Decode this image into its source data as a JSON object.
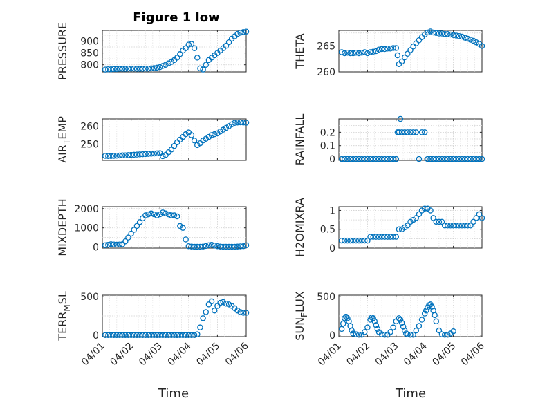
{
  "figure_title": "Figure 1 low",
  "xlabel": "Time",
  "x_ticks": [
    "04/01",
    "04/02",
    "04/03",
    "04/04",
    "04/05",
    "04/06"
  ],
  "marker_color": "#0072bd",
  "chart_data": [
    {
      "type": "scatter",
      "ylabel": "PRESSURE",
      "ylabel_sub": "",
      "ylim": [
        770,
        945
      ],
      "yticks": [
        800,
        850,
        900
      ],
      "xlim": [
        0,
        5
      ],
      "x": [
        0.1,
        0.2,
        0.3,
        0.4,
        0.5,
        0.6,
        0.7,
        0.8,
        0.9,
        1.0,
        1.1,
        1.2,
        1.3,
        1.4,
        1.5,
        1.6,
        1.7,
        1.8,
        1.9,
        2.0,
        2.1,
        2.2,
        2.3,
        2.4,
        2.5,
        2.6,
        2.7,
        2.8,
        2.9,
        3.0,
        3.1,
        3.2,
        3.3,
        3.4,
        3.5,
        3.6,
        3.7,
        3.8,
        3.9,
        4.0,
        4.1,
        4.2,
        4.3,
        4.4,
        4.5,
        4.6,
        4.7,
        4.8,
        4.9,
        5.0
      ],
      "y": [
        780,
        781,
        781,
        782,
        782,
        783,
        783,
        783,
        784,
        784,
        784,
        783,
        783,
        783,
        784,
        784,
        785,
        786,
        788,
        790,
        795,
        800,
        806,
        812,
        820,
        830,
        845,
        860,
        870,
        885,
        888,
        870,
        830,
        785,
        780,
        800,
        820,
        830,
        840,
        850,
        860,
        870,
        880,
        895,
        910,
        920,
        930,
        935,
        938,
        940
      ]
    },
    {
      "type": "scatter",
      "ylabel": "THETA",
      "ylabel_sub": "",
      "ylim": [
        260,
        268
      ],
      "yticks": [
        260,
        265
      ],
      "xlim": [
        0,
        5
      ],
      "x": [
        0.1,
        0.2,
        0.3,
        0.4,
        0.5,
        0.6,
        0.7,
        0.8,
        0.9,
        1.0,
        1.1,
        1.2,
        1.3,
        1.4,
        1.5,
        1.6,
        1.7,
        1.8,
        1.9,
        2.0,
        2.05,
        2.1,
        2.2,
        2.3,
        2.4,
        2.5,
        2.6,
        2.7,
        2.8,
        2.9,
        3.0,
        3.1,
        3.2,
        3.3,
        3.4,
        3.5,
        3.6,
        3.7,
        3.8,
        3.9,
        4.0,
        4.1,
        4.2,
        4.3,
        4.4,
        4.5,
        4.6,
        4.7,
        4.8,
        4.9,
        5.0
      ],
      "y": [
        263.8,
        263.6,
        263.7,
        263.6,
        263.6,
        263.7,
        263.6,
        263.7,
        263.8,
        263.6,
        263.8,
        263.9,
        264.0,
        264.3,
        264.4,
        264.4,
        264.5,
        264.5,
        264.6,
        264.6,
        263.2,
        261.5,
        262.0,
        262.8,
        263.5,
        264.2,
        264.9,
        265.5,
        266.1,
        266.7,
        267.2,
        267.6,
        267.8,
        267.6,
        267.5,
        267.4,
        267.4,
        267.3,
        267.3,
        267.2,
        267.1,
        267.0,
        266.9,
        266.8,
        266.6,
        266.4,
        266.2,
        266.0,
        265.7,
        265.4,
        265.0
      ]
    },
    {
      "type": "scatter",
      "ylabel": "AIR",
      "ylabel_sub": "T",
      "ylabel_rest": "EMP",
      "ylim": [
        241,
        264
      ],
      "yticks": [
        250,
        260
      ],
      "xlim": [
        0,
        5
      ],
      "x": [
        0.1,
        0.2,
        0.3,
        0.4,
        0.5,
        0.6,
        0.7,
        0.8,
        0.9,
        1.0,
        1.1,
        1.2,
        1.3,
        1.4,
        1.5,
        1.6,
        1.7,
        1.8,
        1.9,
        2.0,
        2.1,
        2.2,
        2.3,
        2.4,
        2.5,
        2.6,
        2.7,
        2.8,
        2.9,
        3.0,
        3.1,
        3.2,
        3.3,
        3.4,
        3.5,
        3.6,
        3.7,
        3.8,
        3.9,
        4.0,
        4.1,
        4.2,
        4.3,
        4.4,
        4.5,
        4.6,
        4.7,
        4.8,
        4.9,
        5.0
      ],
      "y": [
        243.5,
        243.4,
        243.4,
        243.5,
        243.6,
        243.7,
        243.8,
        243.8,
        243.9,
        244.0,
        244.1,
        244.2,
        244.3,
        244.4,
        244.5,
        244.6,
        244.7,
        244.8,
        244.9,
        245.0,
        243.3,
        244.0,
        245.5,
        247.0,
        249.0,
        251.0,
        252.5,
        254.0,
        255.5,
        256.5,
        255.0,
        252.0,
        249.5,
        250.5,
        252.0,
        253.0,
        254.0,
        255.0,
        255.5,
        256.0,
        257.0,
        258.0,
        259.0,
        260.0,
        261.0,
        261.8,
        262.0,
        262.1,
        262.0,
        261.9
      ]
    },
    {
      "type": "scatter",
      "ylabel": "RAINFALL",
      "ylabel_sub": "",
      "ylim": [
        -0.01,
        0.3
      ],
      "yticks": [
        0,
        0.1,
        0.2
      ],
      "xlim": [
        0,
        5
      ],
      "x": [
        0.1,
        0.2,
        0.3,
        0.4,
        0.5,
        0.6,
        0.7,
        0.8,
        0.9,
        1.0,
        1.1,
        1.2,
        1.3,
        1.4,
        1.5,
        1.6,
        1.7,
        1.8,
        1.9,
        2.0,
        2.05,
        2.1,
        2.15,
        2.2,
        2.3,
        2.4,
        2.5,
        2.6,
        2.7,
        2.8,
        2.9,
        3.0,
        3.1,
        3.2,
        3.3,
        3.4,
        3.5,
        3.6,
        3.7,
        3.8,
        3.9,
        4.0,
        4.1,
        4.2,
        4.3,
        4.4,
        4.5,
        4.6,
        4.7,
        4.8,
        4.9,
        5.0
      ],
      "y": [
        0,
        0,
        0,
        0,
        0,
        0,
        0,
        0,
        0,
        0,
        0,
        0,
        0,
        0,
        0,
        0,
        0,
        0,
        0,
        0,
        0.2,
        0.2,
        0.3,
        0.2,
        0.2,
        0.2,
        0.2,
        0.2,
        0.2,
        0,
        0.2,
        0.2,
        0,
        0,
        0,
        0,
        0,
        0,
        0,
        0,
        0,
        0,
        0,
        0,
        0,
        0,
        0,
        0,
        0,
        0,
        0,
        0
      ]
    },
    {
      "type": "scatter",
      "ylabel": "MIXDEPTH",
      "ylabel_sub": "",
      "ylim": [
        -50,
        2100
      ],
      "yticks": [
        0,
        1000,
        2000
      ],
      "xlim": [
        0,
        5
      ],
      "x": [
        0.1,
        0.2,
        0.3,
        0.4,
        0.5,
        0.6,
        0.7,
        0.8,
        0.9,
        1.0,
        1.1,
        1.2,
        1.3,
        1.4,
        1.5,
        1.6,
        1.7,
        1.8,
        1.9,
        2.0,
        2.1,
        2.2,
        2.3,
        2.4,
        2.5,
        2.6,
        2.7,
        2.8,
        2.9,
        3.0,
        3.1,
        3.2,
        3.3,
        3.4,
        3.5,
        3.6,
        3.7,
        3.8,
        3.9,
        4.0,
        4.1,
        4.2,
        4.3,
        4.4,
        4.5,
        4.6,
        4.7,
        4.8,
        4.9,
        5.0
      ],
      "y": [
        100,
        120,
        150,
        140,
        130,
        140,
        150,
        300,
        500,
        700,
        900,
        1100,
        1300,
        1500,
        1650,
        1700,
        1750,
        1700,
        1650,
        1700,
        1800,
        1750,
        1700,
        1650,
        1650,
        1600,
        1100,
        1000,
        400,
        50,
        30,
        20,
        20,
        20,
        30,
        60,
        100,
        120,
        80,
        50,
        30,
        20,
        20,
        20,
        20,
        20,
        30,
        40,
        50,
        100
      ]
    },
    {
      "type": "scatter",
      "ylabel": "H2OMIXRA",
      "ylabel_sub": "",
      "ylim": [
        0,
        1.1
      ],
      "yticks": [
        0,
        0.5,
        1
      ],
      "xlim": [
        0,
        5
      ],
      "x": [
        0.1,
        0.2,
        0.3,
        0.4,
        0.5,
        0.6,
        0.7,
        0.8,
        0.9,
        1.0,
        1.1,
        1.2,
        1.3,
        1.4,
        1.5,
        1.6,
        1.7,
        1.8,
        1.9,
        2.0,
        2.1,
        2.2,
        2.3,
        2.4,
        2.5,
        2.6,
        2.7,
        2.8,
        2.9,
        3.0,
        3.1,
        3.2,
        3.3,
        3.4,
        3.5,
        3.6,
        3.7,
        3.8,
        3.9,
        4.0,
        4.1,
        4.2,
        4.3,
        4.4,
        4.5,
        4.6,
        4.7,
        4.8,
        4.9,
        5.0
      ],
      "y": [
        0.2,
        0.2,
        0.2,
        0.2,
        0.2,
        0.2,
        0.2,
        0.2,
        0.2,
        0.2,
        0.3,
        0.3,
        0.3,
        0.3,
        0.3,
        0.3,
        0.3,
        0.3,
        0.3,
        0.3,
        0.5,
        0.5,
        0.55,
        0.6,
        0.7,
        0.75,
        0.8,
        0.9,
        1.0,
        1.05,
        1.05,
        1.0,
        0.8,
        0.7,
        0.7,
        0.7,
        0.6,
        0.6,
        0.6,
        0.6,
        0.6,
        0.6,
        0.6,
        0.6,
        0.6,
        0.6,
        0.7,
        0.8,
        0.9,
        0.8
      ]
    },
    {
      "type": "scatter",
      "ylabel": "TERR",
      "ylabel_sub": "M",
      "ylabel_rest": "SL",
      "ylim": [
        -20,
        520
      ],
      "yticks": [
        0,
        500
      ],
      "xlim": [
        0,
        5
      ],
      "x": [
        0.1,
        0.2,
        0.3,
        0.4,
        0.5,
        0.6,
        0.7,
        0.8,
        0.9,
        1.0,
        1.1,
        1.2,
        1.3,
        1.4,
        1.5,
        1.6,
        1.7,
        1.8,
        1.9,
        2.0,
        2.1,
        2.2,
        2.3,
        2.4,
        2.5,
        2.6,
        2.7,
        2.8,
        2.9,
        3.0,
        3.1,
        3.2,
        3.3,
        3.4,
        3.5,
        3.6,
        3.7,
        3.8,
        3.9,
        4.0,
        4.1,
        4.2,
        4.3,
        4.4,
        4.5,
        4.6,
        4.7,
        4.8,
        4.9,
        5.0
      ],
      "y": [
        0,
        0,
        0,
        0,
        0,
        0,
        0,
        0,
        0,
        0,
        0,
        0,
        0,
        0,
        0,
        0,
        0,
        0,
        0,
        0,
        0,
        0,
        0,
        0,
        0,
        0,
        0,
        0,
        0,
        0,
        0,
        0,
        10,
        100,
        220,
        300,
        400,
        440,
        320,
        380,
        420,
        430,
        410,
        400,
        380,
        350,
        320,
        300,
        290,
        290
      ]
    },
    {
      "type": "scatter",
      "ylabel": "SUN",
      "ylabel_sub": "F",
      "ylabel_rest": "LUX",
      "ylim": [
        -20,
        520
      ],
      "yticks": [
        0,
        500
      ],
      "xlim": [
        0,
        5
      ],
      "x": [
        0.1,
        0.15,
        0.2,
        0.25,
        0.3,
        0.35,
        0.4,
        0.45,
        0.5,
        0.6,
        0.7,
        0.8,
        0.9,
        1.0,
        1.1,
        1.15,
        1.2,
        1.25,
        1.3,
        1.35,
        1.4,
        1.5,
        1.6,
        1.7,
        1.8,
        1.9,
        2.0,
        2.1,
        2.15,
        2.2,
        2.25,
        2.3,
        2.35,
        2.4,
        2.5,
        2.6,
        2.7,
        2.8,
        2.9,
        3.0,
        3.05,
        3.1,
        3.15,
        3.2,
        3.25,
        3.3,
        3.35,
        3.4,
        3.5,
        3.6,
        3.7,
        3.8,
        3.9,
        4.0
      ],
      "y": [
        80,
        150,
        220,
        240,
        220,
        180,
        120,
        60,
        20,
        10,
        5,
        5,
        40,
        100,
        200,
        230,
        220,
        180,
        130,
        80,
        40,
        10,
        5,
        5,
        40,
        100,
        180,
        220,
        200,
        160,
        110,
        60,
        20,
        10,
        5,
        5,
        60,
        120,
        200,
        280,
        320,
        360,
        390,
        400,
        370,
        320,
        260,
        180,
        60,
        10,
        5,
        5,
        20,
        50
      ]
    }
  ]
}
